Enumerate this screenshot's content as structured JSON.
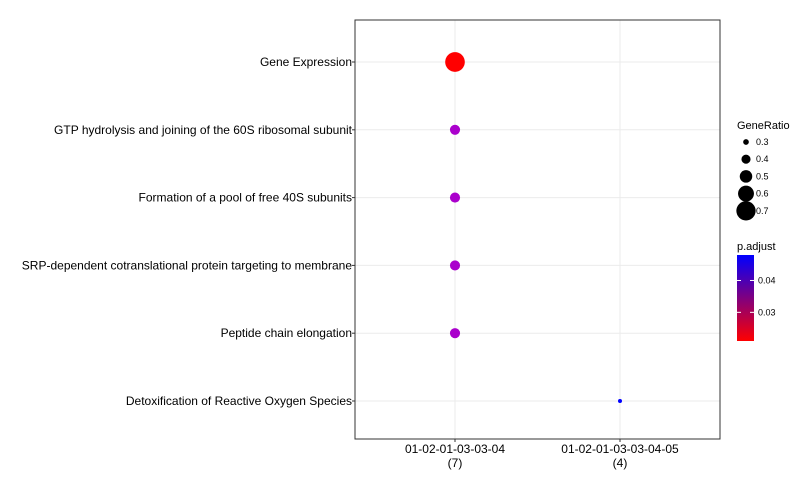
{
  "chart_data": {
    "type": "scatter",
    "categories_y": [
      "Gene Expression",
      "GTP hydrolysis and joining of the 60S ribosomal subunit",
      "Formation of a pool of free 40S subunits",
      "SRP-dependent cotranslational protein targeting to membrane",
      "Peptide chain elongation",
      "Detoxification of Reactive Oxygen Species"
    ],
    "categories_x": [
      {
        "line1": "01-02-01-03-03-04",
        "line2": "(7)"
      },
      {
        "line1": "01-02-01-03-03-04-05",
        "line2": "(4)"
      }
    ],
    "points": [
      {
        "x": 0,
        "y": 0,
        "gene_ratio": 0.71,
        "p_adjust": 0.021,
        "color": "#FF0000"
      },
      {
        "x": 0,
        "y": 1,
        "gene_ratio": 0.43,
        "p_adjust": 0.043,
        "color": "#AA00CC"
      },
      {
        "x": 0,
        "y": 2,
        "gene_ratio": 0.43,
        "p_adjust": 0.043,
        "color": "#AA00CC"
      },
      {
        "x": 0,
        "y": 3,
        "gene_ratio": 0.43,
        "p_adjust": 0.043,
        "color": "#AA00CC"
      },
      {
        "x": 0,
        "y": 4,
        "gene_ratio": 0.43,
        "p_adjust": 0.043,
        "color": "#AA00CC"
      },
      {
        "x": 1,
        "y": 5,
        "gene_ratio": 0.25,
        "p_adjust": 0.048,
        "color": "#0000FF"
      }
    ],
    "size_legend": {
      "title": "GeneRatio",
      "values": [
        0.3,
        0.4,
        0.5,
        0.6,
        0.7
      ],
      "labels": [
        "0.3",
        "0.4",
        "0.5",
        "0.6",
        "0.7"
      ]
    },
    "color_legend": {
      "title": "p.adjust",
      "low": 0.021,
      "high": 0.048,
      "low_color": "#FF0000",
      "high_color": "#0000FF",
      "ticks": [
        0.03,
        0.04
      ],
      "tick_labels": [
        "0.03",
        "0.04"
      ]
    },
    "grid": true,
    "legend_position": "right"
  }
}
